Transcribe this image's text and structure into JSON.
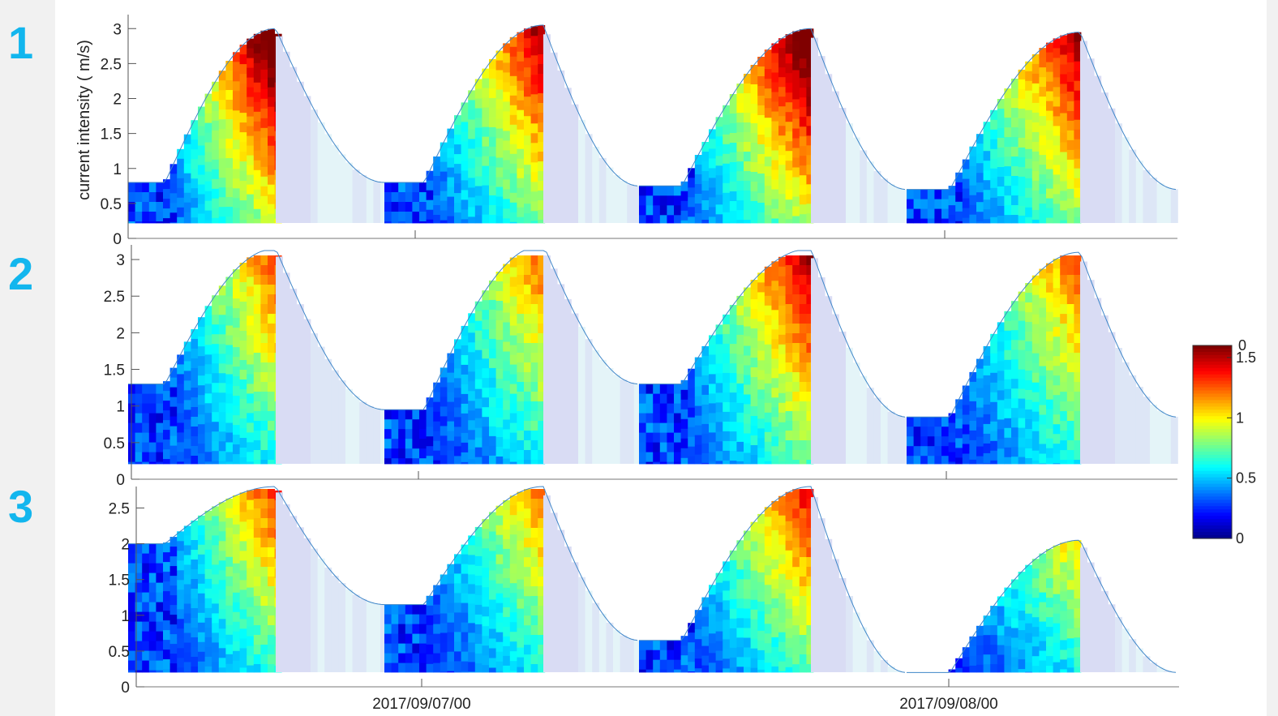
{
  "panel_labels": [
    "1",
    "2",
    "3"
  ],
  "chart_data": {
    "type": "heatmap",
    "ylabel": "current intensity ( m/s)",
    "x_tick_labels": [
      "2017/09/07/00",
      "2017/09/08/00"
    ],
    "panels": [
      {
        "label": "1",
        "ylim": [
          0,
          3.2
        ],
        "yticks": [
          0,
          0.5,
          1,
          1.5,
          2,
          2.5,
          3
        ],
        "envelope_peaks": [
          3.0,
          3.05,
          3.0,
          2.95
        ],
        "envelope_troughs": [
          0.8,
          0.8,
          0.75,
          0.7
        ],
        "max_intensity": [
          1.6,
          1.35,
          1.6,
          1.4
        ]
      },
      {
        "label": "2",
        "ylim": [
          0,
          3.2
        ],
        "yticks": [
          0,
          0.5,
          1,
          1.5,
          2,
          2.5,
          3
        ],
        "envelope_peaks": [
          3.15,
          3.2,
          3.15,
          3.1
        ],
        "envelope_troughs": [
          1.3,
          0.95,
          1.3,
          0.85
        ],
        "max_intensity": [
          1.05,
          1.0,
          1.3,
          1.05
        ]
      },
      {
        "label": "3",
        "ylim": [
          0,
          2.8
        ],
        "yticks": [
          0,
          0.5,
          1,
          1.5,
          2,
          2.5
        ],
        "envelope_peaks": [
          2.8,
          2.8,
          2.8,
          2.05
        ],
        "envelope_troughs": [
          2.0,
          1.15,
          0.65,
          0.2
        ],
        "max_intensity": [
          1.1,
          1.0,
          1.2,
          1.0
        ]
      }
    ],
    "colorbar": {
      "range": [
        0,
        1.6
      ],
      "tick_labels": [
        "0",
        "0.5",
        "1",
        "1.5"
      ],
      "partial_top_label": "0",
      "colormap": "jet"
    },
    "shaded_color": "#d9dcf4"
  }
}
